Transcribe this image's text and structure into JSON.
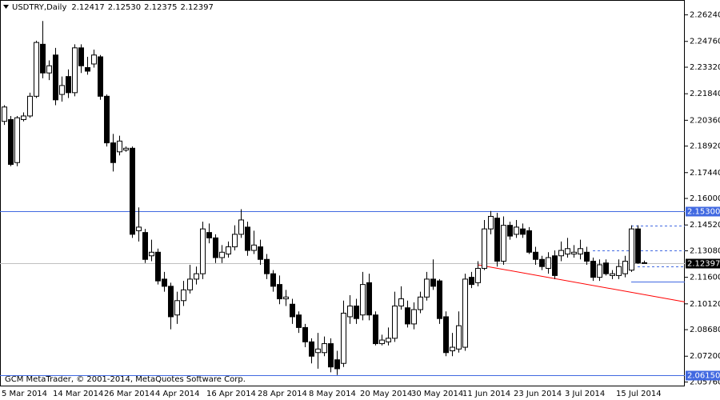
{
  "chart_data": {
    "type": "candlestick",
    "header": {
      "symbol": "USDTRY,Daily",
      "open": {
        "value": 2.12417,
        "label": "2.12417"
      },
      "high": {
        "value": 2.1253,
        "label": "2.12530"
      },
      "low": {
        "value": 2.12375,
        "label": "2.12375"
      },
      "close": {
        "value": 2.12397,
        "label": "2.12397"
      }
    },
    "footer": "GCM MetaTrader, © 2001-2014, MetaQuotes Software Corp.",
    "categories": [
      "5 Mar 2014",
      null,
      null,
      null,
      null,
      null,
      null,
      null,
      "14 Mar 2014",
      null,
      null,
      null,
      null,
      null,
      null,
      null,
      "26 Mar 2014",
      null,
      null,
      null,
      null,
      null,
      null,
      null,
      "4 Apr 2014",
      null,
      null,
      null,
      null,
      null,
      null,
      null,
      "16 Apr 2014",
      null,
      null,
      null,
      null,
      null,
      null,
      null,
      "28 Apr 2014",
      null,
      null,
      null,
      null,
      null,
      null,
      null,
      "8 May 2014",
      null,
      null,
      null,
      null,
      null,
      null,
      null,
      "20 May 2014",
      null,
      null,
      null,
      null,
      null,
      null,
      null,
      "30 May 2014",
      null,
      null,
      null,
      null,
      null,
      null,
      null,
      "11 Jun 2014",
      null,
      null,
      null,
      null,
      null,
      null,
      null,
      "23 Jun 2014",
      null,
      null,
      null,
      null,
      null,
      null,
      null,
      "3 Jul 2014",
      null,
      null,
      null,
      null,
      null,
      null,
      null,
      "15 Jul 2014",
      null,
      null,
      null,
      null
    ],
    "open": [
      2.203,
      2.204,
      2.18,
      2.204,
      2.206,
      2.217,
      2.246,
      2.23,
      2.24,
      2.218,
      2.228,
      2.219,
      2.244,
      2.233,
      2.235,
      2.239,
      2.217,
      2.191,
      2.186,
      2.187,
      2.188,
      2.142,
      2.141,
      2.128,
      2.13,
      2.115,
      2.111,
      2.095,
      2.103,
      2.109,
      2.115,
      2.118,
      2.141,
      2.138,
      2.127,
      2.129,
      2.133,
      2.14,
      2.144,
      2.131,
      2.133,
      2.126,
      2.118,
      2.112,
      2.104,
      2.101,
      2.095,
      2.088,
      2.08,
      2.074,
      2.074,
      2.079,
      2.07,
      2.068,
      2.094,
      2.1,
      2.095,
      2.113,
      2.095,
      2.079,
      2.08,
      2.082,
      2.1,
      2.099,
      2.09,
      2.098,
      2.105,
      2.115,
      2.114,
      2.094,
      2.075,
      2.076,
      2.077,
      2.116,
      2.113,
      2.121,
      2.143,
      2.149,
      2.125,
      2.145,
      2.14,
      2.143,
      2.142,
      2.13,
      2.126,
      2.121,
      2.128,
      2.128,
      2.129,
      2.129,
      2.129,
      2.13,
      2.125,
      2.116,
      2.124,
      2.117,
      2.117,
      2.118,
      2.12,
      2.143,
      2.12417
    ],
    "high": [
      2.212,
      2.206,
      2.206,
      2.208,
      2.219,
      2.248,
      2.259,
      2.237,
      2.244,
      2.228,
      2.232,
      2.246,
      2.246,
      2.239,
      2.243,
      2.24,
      2.218,
      2.196,
      2.195,
      2.189,
      2.189,
      2.155,
      2.143,
      2.137,
      2.132,
      2.119,
      2.113,
      2.108,
      2.114,
      2.123,
      2.122,
      2.147,
      2.146,
      2.14,
      2.134,
      2.136,
      2.145,
      2.154,
      2.147,
      2.142,
      2.137,
      2.129,
      2.12,
      2.117,
      2.109,
      2.104,
      2.097,
      2.09,
      2.082,
      2.085,
      2.083,
      2.082,
      2.075,
      2.103,
      2.106,
      2.104,
      2.119,
      2.118,
      2.097,
      2.084,
      2.088,
      2.108,
      2.111,
      2.103,
      2.102,
      2.108,
      2.119,
      2.126,
      2.115,
      2.097,
      2.085,
      2.097,
      2.118,
      2.119,
      2.125,
      2.148,
      2.153,
      2.152,
      2.15,
      2.147,
      2.148,
      2.146,
      2.144,
      2.133,
      2.128,
      2.13,
      2.131,
      2.136,
      2.138,
      2.134,
      2.137,
      2.133,
      2.127,
      2.126,
      2.126,
      2.12,
      2.126,
      2.128,
      2.145,
      2.145,
      2.1253
    ],
    "low": [
      2.201,
      2.178,
      2.178,
      2.203,
      2.205,
      2.216,
      2.227,
      2.226,
      2.212,
      2.214,
      2.216,
      2.217,
      2.23,
      2.229,
      2.233,
      2.215,
      2.189,
      2.175,
      2.184,
      2.186,
      2.138,
      2.136,
      2.124,
      2.125,
      2.112,
      2.108,
      2.087,
      2.09,
      2.1,
      2.107,
      2.112,
      2.115,
      2.135,
      2.124,
      2.124,
      2.127,
      2.131,
      2.138,
      2.128,
      2.129,
      2.123,
      2.115,
      2.108,
      2.101,
      2.1,
      2.09,
      2.085,
      2.077,
      2.068,
      2.065,
      2.072,
      2.063,
      2.0615,
      2.066,
      2.09,
      2.09,
      2.092,
      2.092,
      2.078,
      2.078,
      2.078,
      2.08,
      2.098,
      2.088,
      2.087,
      2.096,
      2.103,
      2.109,
      2.09,
      2.072,
      2.072,
      2.074,
      2.075,
      2.11,
      2.111,
      2.12,
      2.14,
      2.122,
      2.123,
      2.137,
      2.138,
      2.138,
      2.129,
      2.123,
      2.12,
      2.118,
      2.115,
      2.125,
      2.127,
      2.127,
      2.126,
      2.123,
      2.114,
      2.114,
      2.117,
      2.115,
      2.115,
      2.116,
      2.119,
      2.1235,
      2.12375
    ],
    "close": [
      2.211,
      2.179,
      2.205,
      2.206,
      2.217,
      2.247,
      2.23,
      2.234,
      2.215,
      2.223,
      2.219,
      2.244,
      2.234,
      2.231,
      2.24,
      2.217,
      2.191,
      2.18,
      2.192,
      2.188,
      2.14,
      2.144,
      2.126,
      2.13,
      2.114,
      2.111,
      2.094,
      2.103,
      2.109,
      2.115,
      2.118,
      2.143,
      2.138,
      2.127,
      2.13,
      2.133,
      2.14,
      2.148,
      2.131,
      2.134,
      2.126,
      2.118,
      2.111,
      2.104,
      2.105,
      2.094,
      2.088,
      2.08,
      2.072,
      2.076,
      2.079,
      2.066,
      2.065,
      2.096,
      2.1,
      2.093,
      2.112,
      2.095,
      2.079,
      2.081,
      2.082,
      2.1,
      2.104,
      2.09,
      2.098,
      2.105,
      2.115,
      2.111,
      2.093,
      2.074,
      2.077,
      2.089,
      2.115,
      2.112,
      2.121,
      2.143,
      2.15,
      2.125,
      2.145,
      2.139,
      2.144,
      2.14,
      2.13,
      2.126,
      2.122,
      2.127,
      2.117,
      2.131,
      2.132,
      2.13,
      2.132,
      2.125,
      2.116,
      2.123,
      2.118,
      2.118,
      2.122,
      2.125,
      2.143,
      2.124,
      2.12397
    ],
    "up_color": "#ffffff",
    "down_color": "#000000",
    "ylim": [
      2.0556,
      2.2698
    ],
    "yticks": [
      {
        "value": 2.2624,
        "label": "2.26240"
      },
      {
        "value": 2.2476,
        "label": "2.24760"
      },
      {
        "value": 2.2332,
        "label": "2.23320"
      },
      {
        "value": 2.2184,
        "label": "2.21840"
      },
      {
        "value": 2.2036,
        "label": "2.20360"
      },
      {
        "value": 2.1892,
        "label": "2.18920"
      },
      {
        "value": 2.1744,
        "label": "2.17440"
      },
      {
        "value": 2.16,
        "label": "2.16000"
      },
      {
        "value": 2.1452,
        "label": "2.14520"
      },
      {
        "value": 2.1308,
        "label": "2.13080"
      },
      {
        "value": 2.116,
        "label": "2.11600"
      },
      {
        "value": 2.1012,
        "label": "2.10120"
      },
      {
        "value": 2.0868,
        "label": "2.08680"
      },
      {
        "value": 2.072,
        "label": "2.07200"
      },
      {
        "value": 2.0576,
        "label": "2.05760"
      }
    ],
    "grid": false,
    "levels": [
      {
        "value": 2.153,
        "label": "2.15300",
        "color": "#4169e1"
      },
      {
        "value": 2.0615,
        "label": "2.06150",
        "color": "#4169e1"
      }
    ],
    "bid": {
      "value": 2.12397,
      "label": "2.12397",
      "color": "#c0c0c0"
    },
    "segments": [
      {
        "value": 2.1448,
        "from": 98,
        "dashed": true,
        "color": "#4169e1"
      },
      {
        "value": 2.1309,
        "from": 92,
        "dashed": true,
        "color": "#4169e1"
      },
      {
        "value": 2.122,
        "from": 99,
        "dashed": true,
        "color": "#4169e1"
      },
      {
        "value": 2.1136,
        "from": 98,
        "dashed": false,
        "color": "#4169e1"
      }
    ],
    "trendline": {
      "points": [
        [
          74,
          2.123
        ],
        [
          99,
          2.107
        ]
      ],
      "color": "#ff0000"
    }
  }
}
